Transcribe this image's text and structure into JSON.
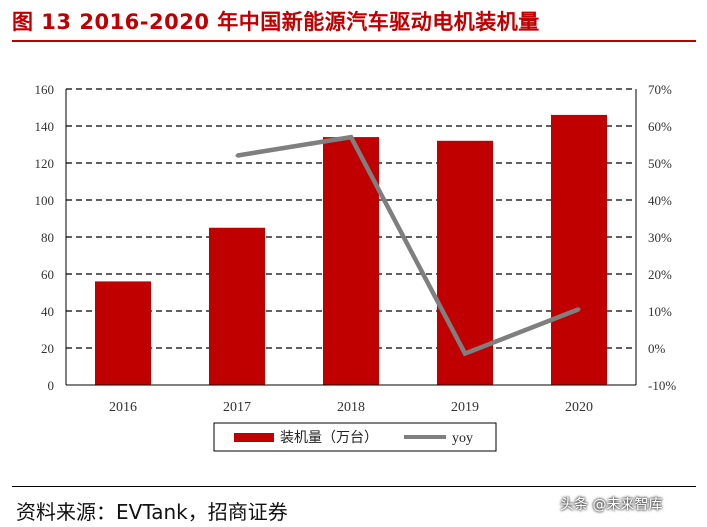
{
  "header": {
    "title": "图 13 2016-2020 年中国新能源汽车驱动电机装机量"
  },
  "chart_data": {
    "type": "bar",
    "title": "图 13 2016-2020 年中国新能源汽车驱动电机装机量",
    "categories": [
      "2016",
      "2017",
      "2018",
      "2019",
      "2020"
    ],
    "series": [
      {
        "name": "装机量（万台）",
        "kind": "bar",
        "axis": "left",
        "color": "#c00000",
        "values": [
          56,
          85,
          134,
          132,
          146
        ]
      },
      {
        "name": "yoy",
        "kind": "line",
        "axis": "right",
        "color": "#7f7f7f",
        "values": [
          null,
          52,
          57,
          -1.5,
          10.5
        ]
      }
    ],
    "left_axis": {
      "ylim": [
        0,
        160
      ],
      "ticks": [
        "0",
        "20",
        "40",
        "60",
        "80",
        "100",
        "120",
        "140",
        "160"
      ]
    },
    "right_axis": {
      "ylim": [
        -10,
        70
      ],
      "ticks": [
        "-10%",
        "0%",
        "10%",
        "20%",
        "30%",
        "40%",
        "50%",
        "60%",
        "70%"
      ]
    },
    "grid": true,
    "legend_position": "bottom"
  },
  "footer": {
    "source": "资料来源：EVTank，招商证券",
    "watermark": "头条 @未来智库"
  }
}
